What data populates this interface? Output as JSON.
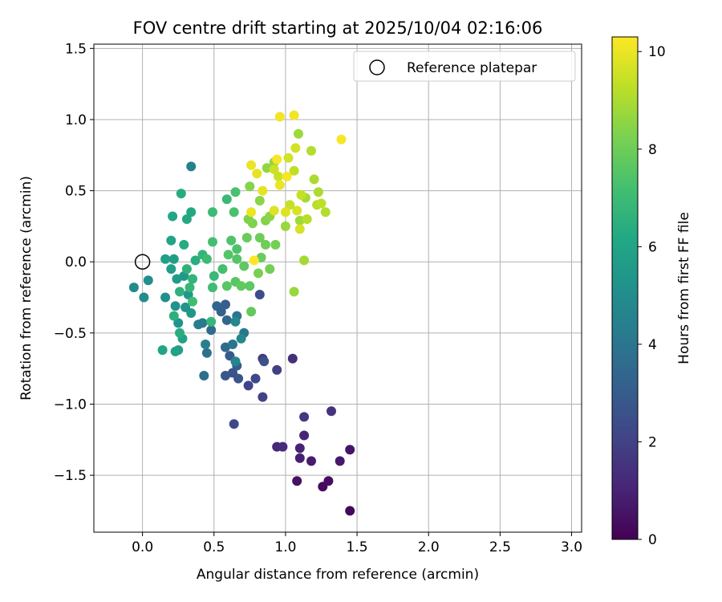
{
  "chart_data": {
    "type": "scatter",
    "title": "FOV centre drift starting at 2025/10/04 02:16:06",
    "xlabel": "Angular distance from reference (arcmin)",
    "ylabel": "Rotation from reference (arcmin)",
    "xlim": [
      -0.34,
      3.07
    ],
    "ylim": [
      -1.9,
      1.53
    ],
    "xticks": [
      0.0,
      0.5,
      1.0,
      1.5,
      2.0,
      2.5,
      3.0
    ],
    "xtick_labels": [
      "0.0",
      "0.5",
      "1.0",
      "1.5",
      "2.0",
      "2.5",
      "3.0"
    ],
    "yticks": [
      -1.5,
      -1.0,
      -0.5,
      0.0,
      0.5,
      1.0,
      1.5
    ],
    "ytick_labels": [
      "−1.5",
      "−1.0",
      "−0.5",
      "0.0",
      "0.5",
      "1.0",
      "1.5"
    ],
    "grid": true,
    "legend": {
      "label": "Reference platepar",
      "location": "top-right"
    },
    "reference_point": {
      "x": 0.0,
      "y": 0.0
    },
    "colorbar": {
      "label": "Hours from first FF file",
      "colormap": "viridis",
      "range": [
        0,
        10.3
      ],
      "ticks": [
        0,
        2,
        4,
        6,
        8,
        10
      ],
      "tick_labels": [
        "0",
        "2",
        "4",
        "6",
        "8",
        "10"
      ]
    },
    "points": [
      {
        "x": 1.45,
        "y": -1.75,
        "h": 0.2
      },
      {
        "x": 1.26,
        "y": -1.58,
        "h": 0.3
      },
      {
        "x": 1.3,
        "y": -1.54,
        "h": 0.4
      },
      {
        "x": 1.08,
        "y": -1.54,
        "h": 0.5
      },
      {
        "x": 1.45,
        "y": -1.32,
        "h": 0.6
      },
      {
        "x": 1.38,
        "y": -1.4,
        "h": 0.7
      },
      {
        "x": 1.18,
        "y": -1.4,
        "h": 0.8
      },
      {
        "x": 1.1,
        "y": -1.38,
        "h": 0.9
      },
      {
        "x": 1.1,
        "y": -1.31,
        "h": 1.0
      },
      {
        "x": 1.13,
        "y": -1.22,
        "h": 1.1
      },
      {
        "x": 0.94,
        "y": -1.3,
        "h": 1.2
      },
      {
        "x": 0.98,
        "y": -1.3,
        "h": 1.3
      },
      {
        "x": 1.05,
        "y": -0.68,
        "h": 1.4
      },
      {
        "x": 1.32,
        "y": -1.05,
        "h": 1.5
      },
      {
        "x": 1.13,
        "y": -1.09,
        "h": 1.7
      },
      {
        "x": 0.84,
        "y": -0.68,
        "h": 1.8
      },
      {
        "x": 0.94,
        "y": -0.76,
        "h": 1.9
      },
      {
        "x": 0.84,
        "y": -0.95,
        "h": 2.0
      },
      {
        "x": 0.74,
        "y": -0.87,
        "h": 2.1
      },
      {
        "x": 0.79,
        "y": -0.82,
        "h": 2.2
      },
      {
        "x": 0.64,
        "y": -1.14,
        "h": 2.3
      },
      {
        "x": 0.82,
        "y": -0.23,
        "h": 2.4
      },
      {
        "x": 0.85,
        "y": -0.7,
        "h": 2.5
      },
      {
        "x": 0.63,
        "y": -0.78,
        "h": 2.6
      },
      {
        "x": 0.67,
        "y": -0.82,
        "h": 2.7
      },
      {
        "x": 0.58,
        "y": -0.8,
        "h": 2.8
      },
      {
        "x": 0.61,
        "y": -0.66,
        "h": 2.9
      },
      {
        "x": 0.66,
        "y": -0.73,
        "h": 3.0
      },
      {
        "x": 0.58,
        "y": -0.3,
        "h": 3.1
      },
      {
        "x": 0.55,
        "y": -0.35,
        "h": 3.2
      },
      {
        "x": 0.52,
        "y": -0.31,
        "h": 3.3
      },
      {
        "x": 0.59,
        "y": -0.41,
        "h": 3.4
      },
      {
        "x": 0.58,
        "y": -0.6,
        "h": 3.5
      },
      {
        "x": 0.48,
        "y": -0.48,
        "h": 3.6
      },
      {
        "x": 0.43,
        "y": -0.8,
        "h": 3.7
      },
      {
        "x": 0.45,
        "y": -0.64,
        "h": 3.8
      },
      {
        "x": 0.63,
        "y": -0.58,
        "h": 3.9
      },
      {
        "x": 0.66,
        "y": -0.38,
        "h": 4.0
      },
      {
        "x": 0.71,
        "y": -0.5,
        "h": 4.1
      },
      {
        "x": 0.42,
        "y": -0.43,
        "h": 4.2
      },
      {
        "x": 0.39,
        "y": -0.44,
        "h": 4.3
      },
      {
        "x": 0.44,
        "y": -0.58,
        "h": 4.4
      },
      {
        "x": 0.34,
        "y": 0.67,
        "h": 4.5
      },
      {
        "x": 0.65,
        "y": -0.7,
        "h": 4.6
      },
      {
        "x": 0.65,
        "y": -0.42,
        "h": 4.7
      },
      {
        "x": 0.69,
        "y": -0.54,
        "h": 4.8
      },
      {
        "x": -0.06,
        "y": -0.18,
        "h": 4.9
      },
      {
        "x": 0.01,
        "y": -0.25,
        "h": 5.0
      },
      {
        "x": 0.04,
        "y": -0.13,
        "h": 5.1
      },
      {
        "x": 0.16,
        "y": -0.25,
        "h": 5.1
      },
      {
        "x": 0.23,
        "y": -0.31,
        "h": 5.2
      },
      {
        "x": 0.25,
        "y": -0.43,
        "h": 5.3
      },
      {
        "x": 0.3,
        "y": -0.32,
        "h": 5.3
      },
      {
        "x": 0.34,
        "y": -0.36,
        "h": 5.4
      },
      {
        "x": 0.32,
        "y": -0.23,
        "h": 5.5
      },
      {
        "x": 0.29,
        "y": -0.1,
        "h": 5.5
      },
      {
        "x": 0.24,
        "y": -0.12,
        "h": 5.6
      },
      {
        "x": 0.2,
        "y": -0.05,
        "h": 5.7
      },
      {
        "x": 0.22,
        "y": 0.02,
        "h": 5.7
      },
      {
        "x": 0.16,
        "y": 0.02,
        "h": 5.8
      },
      {
        "x": 0.25,
        "y": -0.62,
        "h": 5.8
      },
      {
        "x": 0.28,
        "y": -0.54,
        "h": 5.9
      },
      {
        "x": 0.23,
        "y": -0.63,
        "h": 5.9
      },
      {
        "x": 0.14,
        "y": -0.62,
        "h": 6.0
      },
      {
        "x": 0.2,
        "y": 0.15,
        "h": 6.0
      },
      {
        "x": 0.21,
        "y": 0.32,
        "h": 6.1
      },
      {
        "x": 0.31,
        "y": 0.3,
        "h": 6.2
      },
      {
        "x": 0.34,
        "y": 0.35,
        "h": 6.2
      },
      {
        "x": 0.27,
        "y": 0.48,
        "h": 6.3
      },
      {
        "x": 0.29,
        "y": 0.12,
        "h": 6.3
      },
      {
        "x": 0.37,
        "y": 0.01,
        "h": 6.4
      },
      {
        "x": 0.26,
        "y": -0.5,
        "h": 6.4
      },
      {
        "x": 0.22,
        "y": -0.38,
        "h": 6.5
      },
      {
        "x": 0.26,
        "y": -0.21,
        "h": 6.6
      },
      {
        "x": 0.31,
        "y": -0.05,
        "h": 6.6
      },
      {
        "x": 0.35,
        "y": -0.12,
        "h": 6.7
      },
      {
        "x": 0.42,
        "y": 0.05,
        "h": 6.7
      },
      {
        "x": 0.33,
        "y": -0.18,
        "h": 6.8
      },
      {
        "x": 0.48,
        "y": -0.42,
        "h": 6.8
      },
      {
        "x": 0.5,
        "y": -0.1,
        "h": 6.9
      },
      {
        "x": 0.59,
        "y": 0.44,
        "h": 6.9
      },
      {
        "x": 0.49,
        "y": 0.35,
        "h": 7.0
      },
      {
        "x": 0.45,
        "y": 0.02,
        "h": 7.0
      },
      {
        "x": 0.35,
        "y": -0.28,
        "h": 7.1
      },
      {
        "x": 0.49,
        "y": -0.18,
        "h": 7.1
      },
      {
        "x": 0.56,
        "y": -0.05,
        "h": 7.2
      },
      {
        "x": 0.49,
        "y": 0.14,
        "h": 7.2
      },
      {
        "x": 0.64,
        "y": 0.35,
        "h": 7.3
      },
      {
        "x": 0.65,
        "y": 0.49,
        "h": 7.3
      },
      {
        "x": 0.62,
        "y": 0.15,
        "h": 7.4
      },
      {
        "x": 0.66,
        "y": 0.09,
        "h": 7.4
      },
      {
        "x": 0.6,
        "y": 0.05,
        "h": 7.5
      },
      {
        "x": 0.66,
        "y": 0.02,
        "h": 7.5
      },
      {
        "x": 0.59,
        "y": -0.17,
        "h": 7.6
      },
      {
        "x": 0.65,
        "y": -0.14,
        "h": 7.6
      },
      {
        "x": 0.71,
        "y": -0.03,
        "h": 7.7
      },
      {
        "x": 0.75,
        "y": -0.17,
        "h": 7.7
      },
      {
        "x": 0.69,
        "y": -0.17,
        "h": 7.8
      },
      {
        "x": 0.76,
        "y": -0.35,
        "h": 7.8
      },
      {
        "x": 0.73,
        "y": 0.17,
        "h": 7.9
      },
      {
        "x": 0.83,
        "y": 0.03,
        "h": 7.9
      },
      {
        "x": 0.82,
        "y": 0.17,
        "h": 8.0
      },
      {
        "x": 0.86,
        "y": 0.12,
        "h": 8.0
      },
      {
        "x": 0.89,
        "y": -0.05,
        "h": 8.1
      },
      {
        "x": 0.93,
        "y": 0.12,
        "h": 8.1
      },
      {
        "x": 0.81,
        "y": -0.08,
        "h": 8.2
      },
      {
        "x": 0.74,
        "y": 0.3,
        "h": 8.3
      },
      {
        "x": 0.77,
        "y": 0.27,
        "h": 8.3
      },
      {
        "x": 0.75,
        "y": 0.53,
        "h": 8.4
      },
      {
        "x": 0.86,
        "y": 0.29,
        "h": 8.4
      },
      {
        "x": 0.89,
        "y": 0.32,
        "h": 8.5
      },
      {
        "x": 0.82,
        "y": 0.43,
        "h": 8.5
      },
      {
        "x": 0.87,
        "y": 0.66,
        "h": 8.6
      },
      {
        "x": 0.92,
        "y": 0.7,
        "h": 8.6
      },
      {
        "x": 1.0,
        "y": 0.25,
        "h": 8.7
      },
      {
        "x": 1.06,
        "y": -0.21,
        "h": 8.7
      },
      {
        "x": 1.09,
        "y": 0.9,
        "h": 8.8
      },
      {
        "x": 1.1,
        "y": 0.29,
        "h": 8.8
      },
      {
        "x": 1.13,
        "y": 0.01,
        "h": 8.9
      },
      {
        "x": 1.14,
        "y": 0.45,
        "h": 8.9
      },
      {
        "x": 1.2,
        "y": 0.58,
        "h": 9.0
      },
      {
        "x": 1.23,
        "y": 0.49,
        "h": 9.0
      },
      {
        "x": 1.28,
        "y": 0.35,
        "h": 9.1
      },
      {
        "x": 1.18,
        "y": 0.78,
        "h": 9.1
      },
      {
        "x": 1.15,
        "y": 0.3,
        "h": 9.2
      },
      {
        "x": 1.22,
        "y": 0.4,
        "h": 9.2
      },
      {
        "x": 1.25,
        "y": 0.41,
        "h": 9.3
      },
      {
        "x": 1.06,
        "y": 0.64,
        "h": 9.3
      },
      {
        "x": 1.11,
        "y": 0.47,
        "h": 9.4
      },
      {
        "x": 1.03,
        "y": 0.4,
        "h": 9.4
      },
      {
        "x": 0.95,
        "y": 0.6,
        "h": 9.5
      },
      {
        "x": 0.92,
        "y": 0.65,
        "h": 9.5
      },
      {
        "x": 1.07,
        "y": 0.8,
        "h": 9.6
      },
      {
        "x": 1.02,
        "y": 0.73,
        "h": 9.6
      },
      {
        "x": 1.1,
        "y": 0.23,
        "h": 9.7
      },
      {
        "x": 1.08,
        "y": 0.36,
        "h": 9.7
      },
      {
        "x": 0.92,
        "y": 0.36,
        "h": 9.8
      },
      {
        "x": 1.0,
        "y": 0.35,
        "h": 9.8
      },
      {
        "x": 0.84,
        "y": 0.5,
        "h": 9.9
      },
      {
        "x": 0.8,
        "y": 0.62,
        "h": 9.9
      },
      {
        "x": 0.96,
        "y": 0.54,
        "h": 10.0
      },
      {
        "x": 0.76,
        "y": 0.68,
        "h": 10.0
      },
      {
        "x": 0.76,
        "y": 0.35,
        "h": 10.0
      },
      {
        "x": 0.96,
        "y": 1.02,
        "h": 10.1
      },
      {
        "x": 1.06,
        "y": 1.03,
        "h": 10.1
      },
      {
        "x": 1.39,
        "y": 0.86,
        "h": 10.2
      },
      {
        "x": 1.01,
        "y": 0.6,
        "h": 10.2
      },
      {
        "x": 0.94,
        "y": 0.72,
        "h": 10.2
      },
      {
        "x": 0.78,
        "y": 0.01,
        "h": 10.3
      }
    ]
  }
}
